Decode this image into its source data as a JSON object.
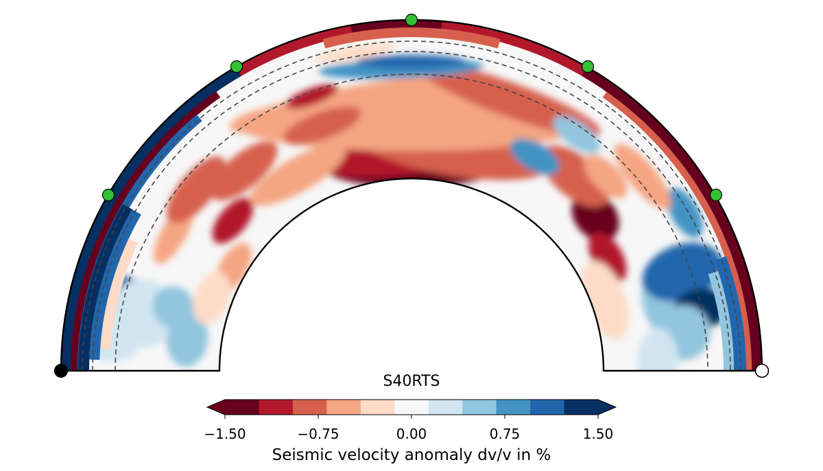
{
  "model_title": "S40RTS",
  "colorbar": {
    "label": "Seismic velocity anomaly dv/v in %",
    "ticks": [
      "−1.50",
      "−0.75",
      "0.00",
      "0.75",
      "1.50"
    ],
    "colors": [
      "#67001f",
      "#b2182b",
      "#d6604d",
      "#f4a582",
      "#fddbc7",
      "#f7f7f7",
      "#d1e5f0",
      "#92c5de",
      "#4393c3",
      "#2166ac",
      "#053061"
    ]
  },
  "markers": {
    "start": "black-circle",
    "end": "white-circle",
    "stations": "green-circle",
    "station_color": "#33c133"
  },
  "dashed_depth_circles": 3
}
